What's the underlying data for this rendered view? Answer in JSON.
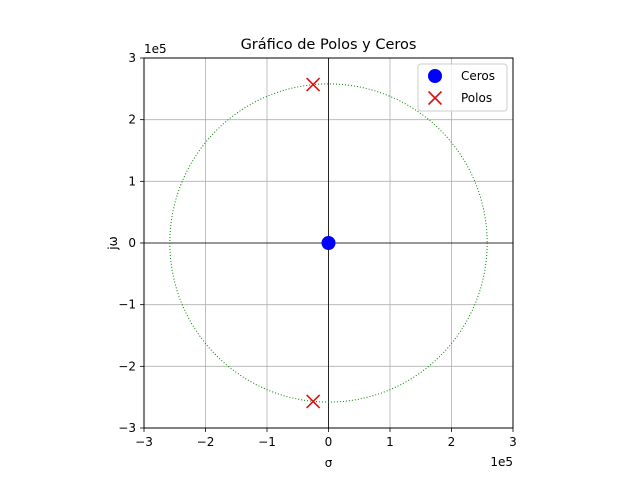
{
  "chart_data": {
    "type": "scatter",
    "title": "Gráfico de Polos y Ceros",
    "xlabel": "σ",
    "ylabel": "jω",
    "x_offset_text": "1e5",
    "y_offset_text": "1e5",
    "xlim": [
      -300000,
      300000
    ],
    "ylim": [
      -300000,
      300000
    ],
    "xticks": [
      -300000,
      -200000,
      -100000,
      0,
      100000,
      200000,
      300000
    ],
    "yticks": [
      -300000,
      -200000,
      -100000,
      0,
      100000,
      200000,
      300000
    ],
    "xtick_labels": [
      "−3",
      "−2",
      "−1",
      "0",
      "1",
      "2",
      "3"
    ],
    "ytick_labels": [
      "−3",
      "−2",
      "−1",
      "0",
      "1",
      "2",
      "3"
    ],
    "grid": true,
    "legend_position": "top-right",
    "unit_circle_radius": 258000,
    "series": [
      {
        "name": "Ceros",
        "marker": "circle",
        "color": "#0000ff",
        "points": [
          {
            "x": 0,
            "y": 0
          }
        ]
      },
      {
        "name": "Polos",
        "marker": "x",
        "color": "#dd1111",
        "points": [
          {
            "x": -25000,
            "y": 257000
          },
          {
            "x": -25000,
            "y": -257000
          }
        ]
      }
    ],
    "circle_color": "#008000"
  }
}
